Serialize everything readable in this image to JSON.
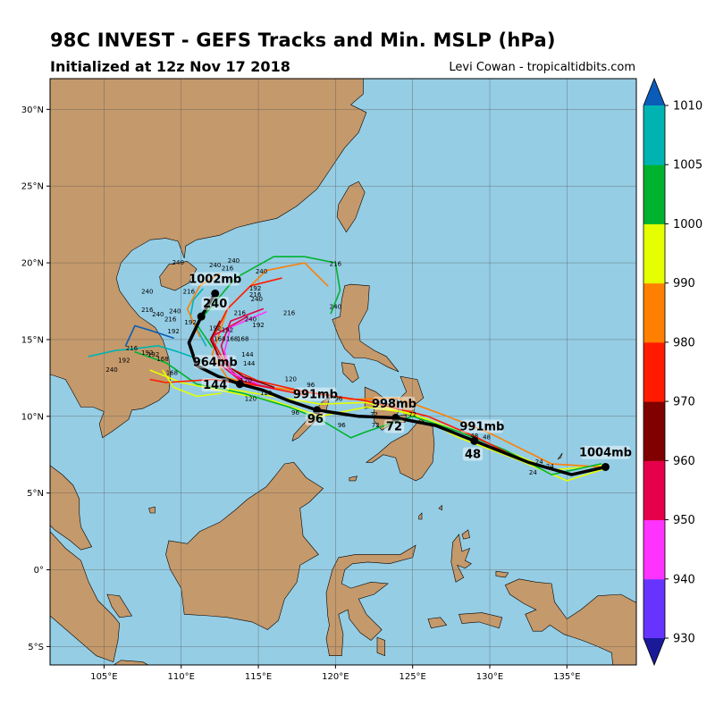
{
  "header": {
    "title": "98C INVEST - GEFS Tracks and Min. MSLP (hPa)",
    "subtitle": "Initialized at 12z Nov 17 2018",
    "credit": "Levi Cowan - tropicaltidbits.com"
  },
  "map": {
    "lon_range": [
      101.5,
      139.5
    ],
    "lat_range": [
      -6.2,
      32
    ],
    "ocean_color": "#95cde4",
    "land_color": "#c4996b",
    "x_ticks": [
      {
        "value": 105,
        "label": "105°E"
      },
      {
        "value": 110,
        "label": "110°E"
      },
      {
        "value": 115,
        "label": "115°E"
      },
      {
        "value": 120,
        "label": "120°E"
      },
      {
        "value": 125,
        "label": "125°E"
      },
      {
        "value": 130,
        "label": "130°E"
      },
      {
        "value": 135,
        "label": "135°E"
      }
    ],
    "y_ticks": [
      {
        "value": 30,
        "label": "30°N"
      },
      {
        "value": 25,
        "label": "25°N"
      },
      {
        "value": 20,
        "label": "20°N"
      },
      {
        "value": 15,
        "label": "15°N"
      },
      {
        "value": 10,
        "label": "10°N"
      },
      {
        "value": 5,
        "label": "5°N"
      },
      {
        "value": 0,
        "label": "0°"
      },
      {
        "value": -5,
        "label": "5°S"
      }
    ]
  },
  "colorbar": {
    "bands": [
      {
        "lo": 925,
        "hi": 930,
        "color": "#1a1a99"
      },
      {
        "lo": 930,
        "hi": 940,
        "color": "#6633ff"
      },
      {
        "lo": 940,
        "hi": 950,
        "color": "#ff33ff"
      },
      {
        "lo": 950,
        "hi": 960,
        "color": "#e6004c"
      },
      {
        "lo": 960,
        "hi": 970,
        "color": "#800000"
      },
      {
        "lo": 970,
        "hi": 980,
        "color": "#ff1a00"
      },
      {
        "lo": 980,
        "hi": 990,
        "color": "#ff7f00"
      },
      {
        "lo": 990,
        "hi": 1000,
        "color": "#e6ff00"
      },
      {
        "lo": 1000,
        "hi": 1005,
        "color": "#00b32e"
      },
      {
        "lo": 1005,
        "hi": 1010,
        "color": "#00b3b3"
      },
      {
        "lo": 1010,
        "hi": 1015,
        "color": "#0a5cb8"
      }
    ],
    "labels": [
      {
        "value": 930,
        "label": "930"
      },
      {
        "value": 940,
        "label": "940"
      },
      {
        "value": 950,
        "label": "950"
      },
      {
        "value": 960,
        "label": "960"
      },
      {
        "value": 970,
        "label": "970"
      },
      {
        "value": 980,
        "label": "980"
      },
      {
        "value": 990,
        "label": "990"
      },
      {
        "value": 1000,
        "label": "1000"
      },
      {
        "value": 1005,
        "label": "1005"
      },
      {
        "value": 1010,
        "label": "1010"
      }
    ]
  },
  "mean_track": {
    "points": [
      {
        "lon": 137.5,
        "lat": 6.7
      },
      {
        "lon": 135.3,
        "lat": 6.2
      },
      {
        "lon": 132.5,
        "lat": 7.0
      },
      {
        "lon": 129.0,
        "lat": 8.4
      },
      {
        "lon": 126.5,
        "lat": 9.4
      },
      {
        "lon": 123.9,
        "lat": 9.9
      },
      {
        "lon": 121.5,
        "lat": 10.0
      },
      {
        "lon": 118.8,
        "lat": 10.4
      },
      {
        "lon": 117.0,
        "lat": 11.0
      },
      {
        "lon": 115.3,
        "lat": 11.7
      },
      {
        "lon": 113.8,
        "lat": 12.1
      },
      {
        "lon": 112.4,
        "lat": 12.6
      },
      {
        "lon": 111.0,
        "lat": 13.3
      },
      {
        "lon": 110.5,
        "lat": 14.8
      },
      {
        "lon": 111.3,
        "lat": 16.5
      },
      {
        "lon": 112.2,
        "lat": 18.0
      }
    ],
    "markers": [
      {
        "lon": 137.5,
        "lat": 6.7
      },
      {
        "lon": 129.0,
        "lat": 8.4
      },
      {
        "lon": 123.9,
        "lat": 9.9
      },
      {
        "lon": 118.8,
        "lat": 10.4
      },
      {
        "lon": 113.8,
        "lat": 12.1
      },
      {
        "lon": 111.3,
        "lat": 16.5
      },
      {
        "lon": 112.2,
        "lat": 18.0
      }
    ]
  },
  "annotations": [
    {
      "text": "1004mb",
      "lon": 137.5,
      "lat": 7.5
    },
    {
      "text": "991mb",
      "lon": 129.5,
      "lat": 9.2
    },
    {
      "text": "48",
      "lon": 128.9,
      "lat": 7.4
    },
    {
      "text": "998mb",
      "lon": 123.8,
      "lat": 10.7
    },
    {
      "text": "72",
      "lon": 123.8,
      "lat": 9.2
    },
    {
      "text": "991mb",
      "lon": 118.7,
      "lat": 11.3
    },
    {
      "text": "96",
      "lon": 118.7,
      "lat": 9.7
    },
    {
      "text": "964mb",
      "lon": 112.2,
      "lat": 13.4
    },
    {
      "text": "144",
      "lon": 112.2,
      "lat": 11.9
    },
    {
      "text": "1002mb",
      "lon": 112.2,
      "lat": 18.8
    },
    {
      "text": "240",
      "lon": 112.2,
      "lat": 17.2
    }
  ],
  "ensemble_tracks": [
    {
      "color": "#e6ff00",
      "pts": [
        [
          137.5,
          6.6
        ],
        [
          135,
          5.8
        ],
        [
          132,
          7.1
        ],
        [
          128,
          8.6
        ],
        [
          125,
          10.2
        ],
        [
          122,
          10.6
        ],
        [
          119,
          10.0
        ],
        [
          116,
          11.0
        ],
        [
          113,
          11.6
        ],
        [
          110,
          12.2
        ],
        [
          108,
          13.0
        ]
      ]
    },
    {
      "color": "#e6ff00",
      "pts": [
        [
          137.3,
          6.8
        ],
        [
          134,
          6.5
        ],
        [
          130,
          8.2
        ],
        [
          126,
          9.8
        ],
        [
          122,
          10.9
        ],
        [
          119,
          10.8
        ],
        [
          116,
          11.3
        ],
        [
          113,
          11.8
        ]
      ]
    },
    {
      "color": "#ff7f00",
      "pts": [
        [
          137.3,
          6.7
        ],
        [
          134,
          6.9
        ],
        [
          130,
          8.9
        ],
        [
          127,
          10.1
        ],
        [
          124,
          11.2
        ],
        [
          121,
          11.1
        ],
        [
          118,
          11.6
        ],
        [
          115,
          12.0
        ],
        [
          113,
          12.5
        ],
        [
          112,
          14
        ],
        [
          113,
          17
        ],
        [
          115.5,
          19.5
        ],
        [
          118,
          20
        ],
        [
          119.5,
          18.5
        ]
      ]
    },
    {
      "color": "#00b32e",
      "pts": [
        [
          137.2,
          6.9
        ],
        [
          134,
          6.2
        ],
        [
          131,
          7.8
        ],
        [
          128,
          9.0
        ],
        [
          125,
          10
        ],
        [
          122,
          9.0
        ],
        [
          121,
          8.6
        ],
        [
          119,
          9.8
        ],
        [
          117,
          10.6
        ],
        [
          114,
          11.5
        ],
        [
          111,
          12.1
        ],
        [
          109,
          13.5
        ],
        [
          107,
          14.2
        ]
      ]
    },
    {
      "color": "#00b32e",
      "pts": [
        [
          112,
          14.5
        ],
        [
          111,
          16
        ],
        [
          113.5,
          19.0
        ],
        [
          116,
          20.4
        ],
        [
          118,
          20.4
        ],
        [
          120,
          20.0
        ],
        [
          120.3,
          18.2
        ],
        [
          119.7,
          16.7
        ]
      ]
    },
    {
      "color": "#ff1a00",
      "pts": [
        [
          132,
          7.2
        ],
        [
          129,
          8.7
        ],
        [
          126,
          10.0
        ],
        [
          122,
          11.0
        ],
        [
          118,
          11.6
        ],
        [
          115,
          12.3
        ],
        [
          113,
          13.2
        ],
        [
          112,
          15
        ],
        [
          113,
          17
        ],
        [
          114.5,
          18.5
        ],
        [
          116.5,
          19.0
        ]
      ]
    },
    {
      "color": "#ff1a00",
      "pts": [
        [
          118,
          11.4
        ],
        [
          115,
          12.0
        ],
        [
          112,
          12.4
        ],
        [
          109,
          12.2
        ],
        [
          108,
          12.4
        ]
      ]
    },
    {
      "color": "#e6004c",
      "pts": [
        [
          116,
          11.8
        ],
        [
          114,
          12.3
        ],
        [
          113,
          13.2
        ],
        [
          112.6,
          14.6
        ],
        [
          113.2,
          16.2
        ],
        [
          115.3,
          17.0
        ]
      ]
    },
    {
      "color": "#e6004c",
      "pts": [
        [
          114,
          12.2
        ],
        [
          112.5,
          13.4
        ],
        [
          112,
          15.2
        ],
        [
          114.3,
          16.5
        ]
      ]
    },
    {
      "color": "#ff33ff",
      "pts": [
        [
          115,
          12.1
        ],
        [
          113.3,
          12.8
        ],
        [
          112.8,
          14.2
        ],
        [
          113.2,
          15.8
        ],
        [
          115.5,
          16.8
        ]
      ]
    },
    {
      "color": "#800000",
      "pts": [
        [
          116,
          11.9
        ],
        [
          114,
          12.6
        ],
        [
          112.6,
          13.6
        ],
        [
          111.9,
          15.0
        ],
        [
          112.5,
          16.2
        ]
      ]
    },
    {
      "color": "#00b3b3",
      "pts": [
        [
          111.5,
          13.6
        ],
        [
          109.8,
          14.2
        ],
        [
          108.5,
          14.6
        ],
        [
          107,
          14.4
        ],
        [
          105.8,
          14.3
        ],
        [
          104,
          13.9
        ]
      ]
    },
    {
      "color": "#0a5cb8",
      "pts": [
        [
          109.5,
          15.1
        ],
        [
          108,
          15.6
        ],
        [
          107,
          15.9
        ],
        [
          106.4,
          14.6
        ]
      ]
    },
    {
      "color": "#00b3b3",
      "pts": [
        [
          111.6,
          14.6
        ],
        [
          110.6,
          16.5
        ],
        [
          110.8,
          17.6
        ],
        [
          111.4,
          18.3
        ]
      ]
    },
    {
      "color": "#ff7f00",
      "pts": [
        [
          111.2,
          15.2
        ],
        [
          110.4,
          17
        ],
        [
          111.2,
          18.5
        ],
        [
          112.5,
          19.3
        ]
      ]
    },
    {
      "color": "#e6ff00",
      "pts": [
        [
          112.6,
          11.5
        ],
        [
          111,
          11.3
        ],
        [
          109.5,
          11.9
        ],
        [
          108.8,
          13.0
        ]
      ]
    }
  ],
  "small_labels": [
    {
      "text": "240",
      "lon": 109.8,
      "lat": 19.9
    },
    {
      "text": "240",
      "lon": 112.2,
      "lat": 19.7
    },
    {
      "text": "240",
      "lon": 113.4,
      "lat": 20.0
    },
    {
      "text": "216",
      "lon": 113.0,
      "lat": 19.5
    },
    {
      "text": "240",
      "lon": 115.2,
      "lat": 19.3
    },
    {
      "text": "216",
      "lon": 120.0,
      "lat": 19.8
    },
    {
      "text": "240",
      "lon": 120.0,
      "lat": 17.0
    },
    {
      "text": "240",
      "lon": 107.8,
      "lat": 18.0
    },
    {
      "text": "216",
      "lon": 110.5,
      "lat": 18.0
    },
    {
      "text": "192",
      "lon": 114.8,
      "lat": 18.2
    },
    {
      "text": "216",
      "lon": 114.8,
      "lat": 17.8
    },
    {
      "text": "240",
      "lon": 114.9,
      "lat": 17.5
    },
    {
      "text": "216",
      "lon": 117.0,
      "lat": 16.6
    },
    {
      "text": "240",
      "lon": 114.5,
      "lat": 16.2
    },
    {
      "text": "192",
      "lon": 115.0,
      "lat": 15.8
    },
    {
      "text": "216",
      "lon": 113.8,
      "lat": 16.6
    },
    {
      "text": "216",
      "lon": 107.8,
      "lat": 16.8
    },
    {
      "text": "240",
      "lon": 108.5,
      "lat": 16.5
    },
    {
      "text": "240",
      "lon": 109.6,
      "lat": 16.7
    },
    {
      "text": "216",
      "lon": 109.3,
      "lat": 16.2
    },
    {
      "text": "192",
      "lon": 110.6,
      "lat": 16.0
    },
    {
      "text": "216",
      "lon": 106.8,
      "lat": 14.3
    },
    {
      "text": "192",
      "lon": 107.8,
      "lat": 14.0
    },
    {
      "text": "192",
      "lon": 109.5,
      "lat": 15.4
    },
    {
      "text": "192",
      "lon": 112.2,
      "lat": 15.6
    },
    {
      "text": "192",
      "lon": 113.0,
      "lat": 15.5
    },
    {
      "text": "168",
      "lon": 112.5,
      "lat": 14.9
    },
    {
      "text": "168",
      "lon": 113.3,
      "lat": 14.9
    },
    {
      "text": "168",
      "lon": 114.0,
      "lat": 14.9
    },
    {
      "text": "144",
      "lon": 114.3,
      "lat": 13.9
    },
    {
      "text": "144",
      "lon": 114.4,
      "lat": 13.3
    },
    {
      "text": "192",
      "lon": 108.2,
      "lat": 13.9
    },
    {
      "text": "168",
      "lon": 108.8,
      "lat": 13.6
    },
    {
      "text": "240",
      "lon": 105.5,
      "lat": 12.9
    },
    {
      "text": "192",
      "lon": 106.3,
      "lat": 13.5
    },
    {
      "text": "168",
      "lon": 109.4,
      "lat": 12.7
    },
    {
      "text": "120",
      "lon": 114.2,
      "lat": 12.2
    },
    {
      "text": "120",
      "lon": 114.5,
      "lat": 11.0
    },
    {
      "text": "120",
      "lon": 115.5,
      "lat": 11.4
    },
    {
      "text": "120",
      "lon": 117.1,
      "lat": 12.3
    },
    {
      "text": "96",
      "lon": 118.4,
      "lat": 11.9
    },
    {
      "text": "96",
      "lon": 117.4,
      "lat": 10.1
    },
    {
      "text": "96",
      "lon": 120.2,
      "lat": 11.0
    },
    {
      "text": "96",
      "lon": 120.4,
      "lat": 9.3
    },
    {
      "text": "72",
      "lon": 122.5,
      "lat": 10.0
    },
    {
      "text": "72",
      "lon": 125.0,
      "lat": 10.0
    },
    {
      "text": "72",
      "lon": 122.6,
      "lat": 9.3
    },
    {
      "text": "48",
      "lon": 129.0,
      "lat": 8.6
    },
    {
      "text": "48",
      "lon": 129.8,
      "lat": 8.5
    },
    {
      "text": "24",
      "lon": 133.2,
      "lat": 6.9
    },
    {
      "text": "24",
      "lon": 133.9,
      "lat": 6.6
    },
    {
      "text": "24",
      "lon": 132.8,
      "lat": 6.2
    }
  ]
}
